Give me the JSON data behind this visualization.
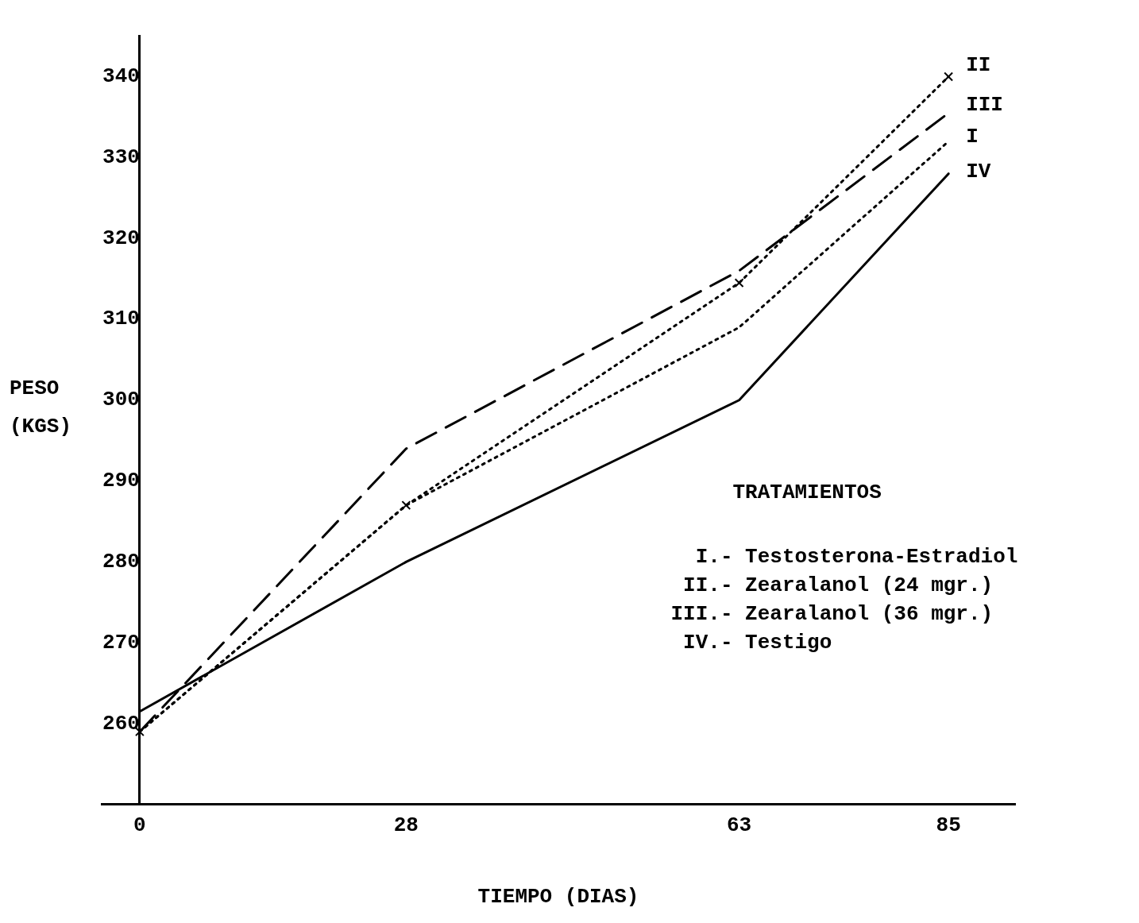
{
  "chart_data": {
    "type": "line",
    "xlabel": "TIEMPO (DIAS)",
    "ylabel": "PESO (KGS)",
    "x": [
      0,
      28,
      63,
      85
    ],
    "xlim": [
      -4,
      92
    ],
    "xticks": [
      0,
      28,
      63,
      85
    ],
    "ylim": [
      250,
      345
    ],
    "yticks": [
      260,
      270,
      280,
      290,
      300,
      310,
      320,
      330,
      340
    ],
    "grid": false,
    "legend": false,
    "series": [
      {
        "name": "II",
        "color": "#000000",
        "values": [
          259,
          287,
          314.5,
          340
        ],
        "marker": "cross",
        "line_style": "dotted"
      },
      {
        "name": "III",
        "color": "#000000",
        "values": [
          259,
          294,
          316,
          335.5
        ],
        "line_style": "dashed"
      },
      {
        "name": "I",
        "color": "#000000",
        "values": [
          259,
          287,
          309,
          332
        ],
        "line_style": "dotted"
      },
      {
        "name": "IV",
        "color": "#000000",
        "values": [
          261.5,
          280,
          300,
          328
        ],
        "line_style": "solid"
      }
    ],
    "annotations": [
      "TRATAMIENTOS",
      "I.- Testosterona-Estradiol",
      "II.- Zearalanol (24 mgr.)",
      "III.- Zearalanol (36 mgr.)",
      "IV.- Testigo"
    ]
  }
}
